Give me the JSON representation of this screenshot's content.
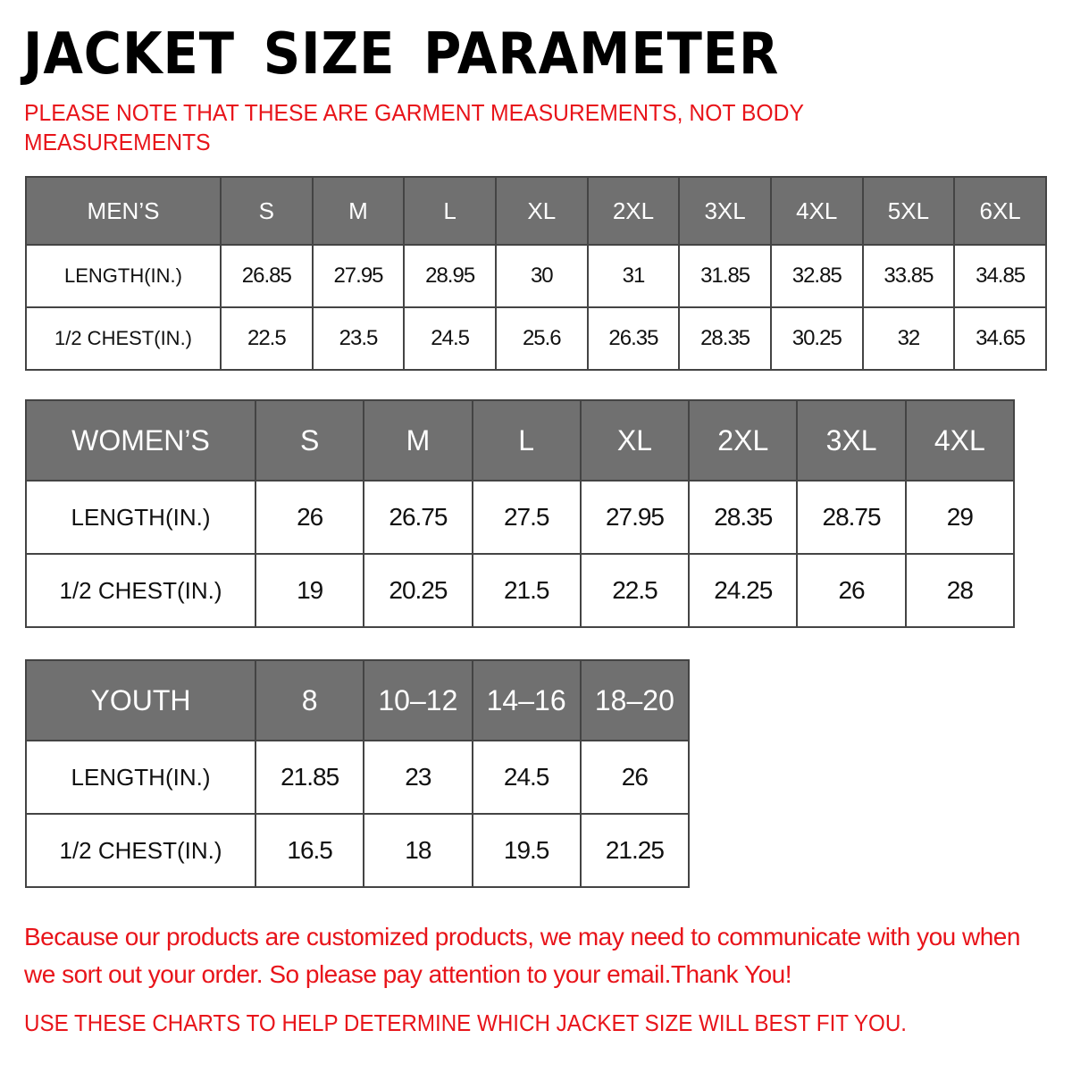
{
  "title": "JACKET  SIZE  PARAMETER",
  "note": "PLEASE NOTE THAT THESE ARE GARMENT MEASUREMENTS, NOT BODY MEASUREMENTS",
  "tables": {
    "men": {
      "header": [
        "MEN’S",
        "S",
        "M",
        "L",
        "XL",
        "2XL",
        "3XL",
        "4XL",
        "5XL",
        "6XL"
      ],
      "rows": [
        [
          "LENGTH(IN.)",
          "26.85",
          "27.95",
          "28.95",
          "30",
          "31",
          "31.85",
          "32.85",
          "33.85",
          "34.85"
        ],
        [
          "1/2 CHEST(IN.)",
          "22.5",
          "23.5",
          "24.5",
          "25.6",
          "26.35",
          "28.35",
          "30.25",
          "32",
          "34.65"
        ]
      ]
    },
    "women": {
      "header": [
        "WOMEN’S",
        "S",
        "M",
        "L",
        "XL",
        "2XL",
        "3XL",
        "4XL"
      ],
      "rows": [
        [
          "LENGTH(IN.)",
          "26",
          "26.75",
          "27.5",
          "27.95",
          "28.35",
          "28.75",
          "29"
        ],
        [
          "1/2 CHEST(IN.)",
          "19",
          "20.25",
          "21.5",
          "22.5",
          "24.25",
          "26",
          "28"
        ]
      ]
    },
    "youth": {
      "header": [
        "YOUTH",
        "8",
        "10–12",
        "14–16",
        "18–20"
      ],
      "rows": [
        [
          "LENGTH(IN.)",
          "21.85",
          "23",
          "24.5",
          "26"
        ],
        [
          "1/2 CHEST(IN.)",
          "16.5",
          "18",
          "19.5",
          "21.25"
        ]
      ]
    }
  },
  "footer": {
    "message": "Because our products are customized products, we may need to communicate with you when we sort out your order. So please pay attention to your email.Thank You!",
    "advice": "USE THESE CHARTS TO HELP DETERMINE WHICH JACKET SIZE WILL BEST FIT YOU."
  },
  "colors": {
    "header_bg": "#707070",
    "accent_red": "#e8141a"
  }
}
